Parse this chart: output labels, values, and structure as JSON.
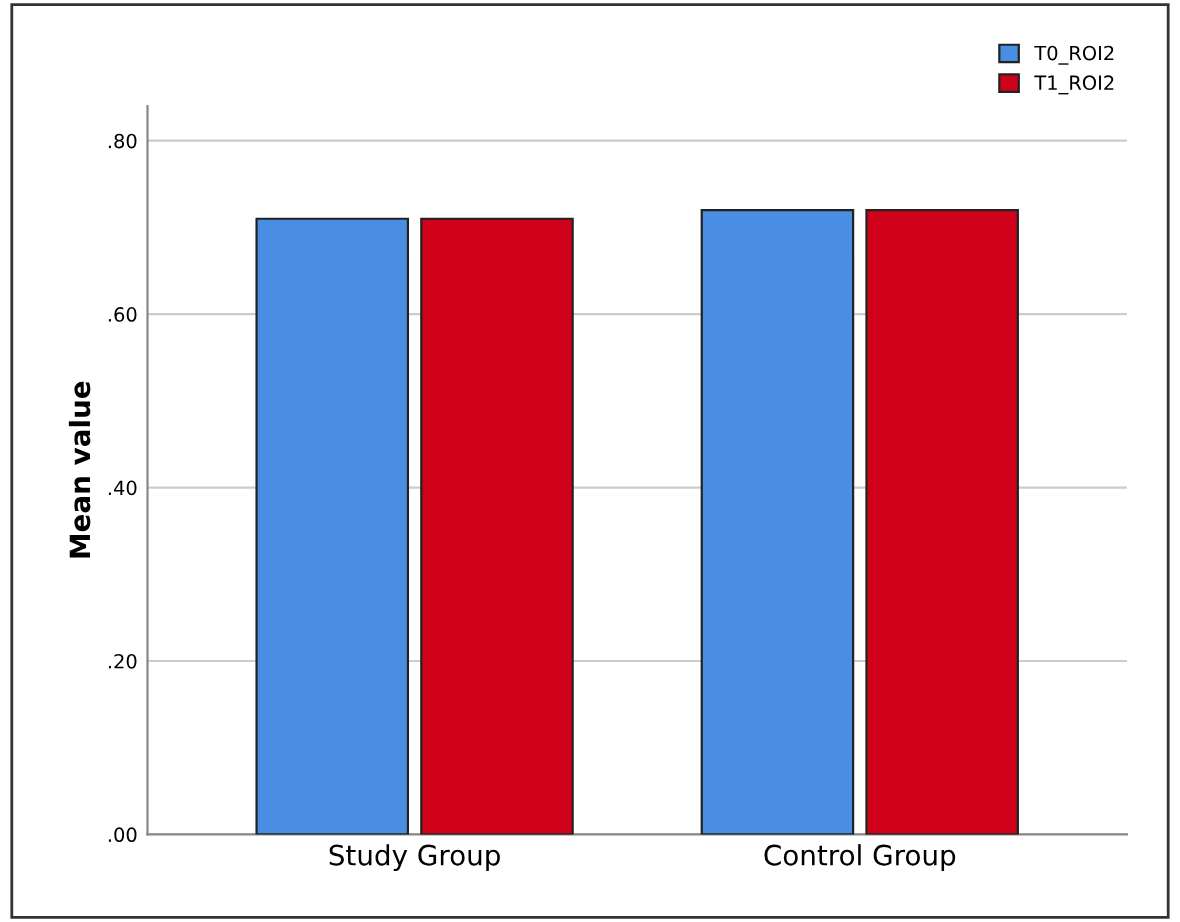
{
  "chart_data": {
    "type": "bar",
    "ylabel": "Mean value",
    "categories": [
      "Study Group",
      "Control Group"
    ],
    "series": [
      {
        "name": "T0_ROI2",
        "color": "#4a8ee3",
        "values": [
          0.71,
          0.72
        ]
      },
      {
        "name": "T1_ROI2",
        "color": "#d0021b",
        "values": [
          0.71,
          0.72
        ]
      }
    ],
    "ylim": [
      0,
      0.84
    ],
    "yticks": [
      {
        "value": 0,
        "label": ".00"
      },
      {
        "value": 0.2,
        "label": ".20"
      },
      {
        "value": 0.4,
        "label": ".40"
      },
      {
        "value": 0.6,
        "label": ".60"
      },
      {
        "value": 0.8,
        "label": ".80"
      }
    ],
    "grid": "y",
    "legend": "top right"
  }
}
